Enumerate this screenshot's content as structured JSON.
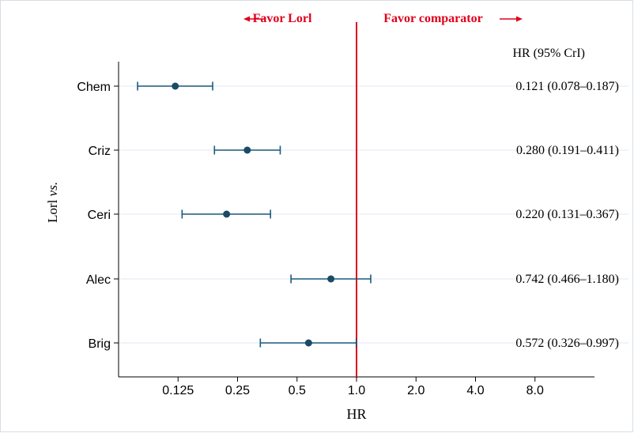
{
  "chart_data": {
    "type": "forest",
    "x_scale": "log2",
    "xlim": [
      0.0625,
      16
    ],
    "xlabel": "HR",
    "ylabel": "Lorl vs.",
    "x_ticks": [
      "0.125",
      "0.25",
      "0.5",
      "1.0",
      "2.0",
      "4.0",
      "8.0"
    ],
    "x_tick_values": [
      0.125,
      0.25,
      0.5,
      1.0,
      2.0,
      4.0,
      8.0
    ],
    "reference_line": 1.0,
    "header_left": "Favor Lorl",
    "header_right": "Favor comparator",
    "ci_column_title": "HR (95% CrI)",
    "rows": [
      {
        "label": "Chem",
        "hr": 0.121,
        "lo": 0.078,
        "hi": 0.187,
        "text": "0.121 (0.078–0.187)"
      },
      {
        "label": "Criz",
        "hr": 0.28,
        "lo": 0.191,
        "hi": 0.411,
        "text": "0.280 (0.191–0.411)"
      },
      {
        "label": "Ceri",
        "hr": 0.22,
        "lo": 0.131,
        "hi": 0.367,
        "text": "0.220 (0.131–0.367)"
      },
      {
        "label": "Alec",
        "hr": 0.742,
        "lo": 0.466,
        "hi": 1.18,
        "text": "0.742 (0.466–1.180)"
      },
      {
        "label": "Brig",
        "hr": 0.572,
        "lo": 0.326,
        "hi": 0.997,
        "text": "0.572 (0.326–0.997)"
      }
    ],
    "colors": {
      "point": "#1b4a66",
      "ci": "#1b5a7e",
      "reference": "#e0001b",
      "header": "#e0001b",
      "grid": "#e6eef3",
      "axis": "#000000"
    }
  }
}
